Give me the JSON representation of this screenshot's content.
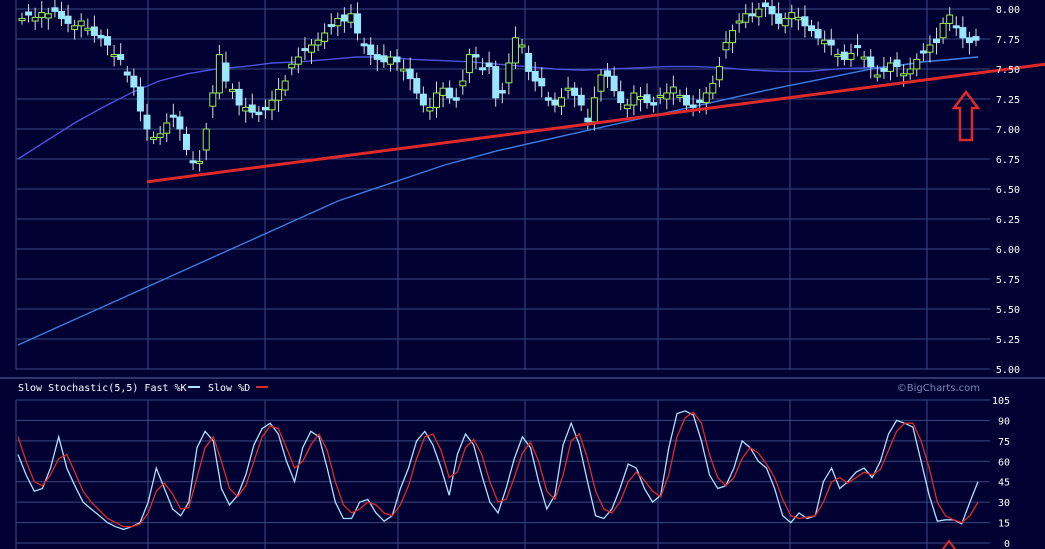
{
  "colors": {
    "background": "#000033",
    "grid": "#3a4a80",
    "candle_up": "#99ee55",
    "candle_down": "#99e6ff",
    "ma_short": "#4a52e0",
    "ma_long": "#3b7de0",
    "trendline": "#e02a2a",
    "arrow": "#e02a2a",
    "stoch_fast": "#a8e4ff",
    "stoch_slow": "#e02a2a"
  },
  "chart_data": [
    {
      "type": "candlestick",
      "title": "",
      "ylim": [
        5.0,
        8.0
      ],
      "y_ticks": [
        "8.00",
        "7.75",
        "7.50",
        "7.25",
        "7.00",
        "6.75",
        "6.50",
        "6.25",
        "6.00",
        "5.75",
        "5.50",
        "5.25",
        "5.00"
      ],
      "n_sessions": 122,
      "ohlc_close": [
        7.92,
        7.95,
        7.93,
        7.97,
        7.96,
        7.98,
        7.92,
        7.88,
        7.86,
        7.9,
        7.84,
        7.78,
        7.76,
        7.7,
        7.62,
        7.58,
        7.45,
        7.35,
        7.15,
        7.0,
        6.93,
        6.96,
        7.05,
        7.1,
        7.0,
        6.83,
        6.72,
        6.73,
        7.0,
        7.3,
        7.62,
        7.4,
        7.33,
        7.2,
        7.18,
        7.14,
        7.12,
        7.16,
        7.24,
        7.33,
        7.4,
        7.54,
        7.6,
        7.66,
        7.7,
        7.74,
        7.8,
        7.86,
        7.92,
        7.9,
        7.96,
        7.8,
        7.7,
        7.62,
        7.58,
        7.56,
        7.6,
        7.56,
        7.5,
        7.42,
        7.3,
        7.2,
        7.18,
        7.3,
        7.34,
        7.26,
        7.24,
        7.4,
        7.62,
        7.6,
        7.5,
        7.52,
        7.26,
        7.3,
        7.55,
        7.76,
        7.7,
        7.48,
        7.4,
        7.36,
        7.24,
        7.2,
        7.26,
        7.34,
        7.28,
        7.2,
        7.06,
        7.26,
        7.45,
        7.44,
        7.32,
        7.22,
        7.2,
        7.3,
        7.27,
        7.22,
        7.2,
        7.28,
        7.3,
        7.35,
        7.28,
        7.2,
        7.18,
        7.22,
        7.3,
        7.38,
        7.52,
        7.72,
        7.82,
        7.9,
        7.96,
        7.95,
        8.0,
        8.02,
        7.96,
        7.88,
        7.92,
        7.97,
        7.93,
        7.86,
        7.82,
        7.76
      ],
      "tail_closes": [
        7.74,
        7.7,
        7.62,
        7.58,
        7.63,
        7.68,
        7.6,
        7.52,
        7.45,
        7.48,
        7.55,
        7.52,
        7.46,
        7.5,
        7.58,
        7.64,
        7.7,
        7.72,
        7.88,
        7.95,
        7.85,
        7.76,
        7.72,
        7.74
      ],
      "moving_averages": [
        {
          "values": [
            6.75,
            6.9,
            7.05,
            7.18,
            7.3,
            7.4,
            7.46,
            7.5,
            7.52,
            7.55,
            7.56,
            7.58,
            7.6,
            7.6,
            7.58,
            7.57,
            7.56,
            7.54,
            7.52,
            7.5,
            7.49,
            7.5,
            7.51,
            7.52,
            7.52,
            7.51,
            7.49,
            7.48,
            7.48,
            7.5,
            7.51,
            7.52,
            7.56,
            7.58,
            7.6
          ]
        },
        {
          "values": [
            5.2,
            5.4,
            5.6,
            5.8,
            6.0,
            6.2,
            6.4,
            6.55,
            6.7,
            6.82,
            6.92,
            7.02,
            7.12,
            7.22,
            7.32,
            7.41,
            7.5,
            7.56,
            7.6
          ]
        }
      ],
      "trendline": {
        "from": [
          7,
          6.56
        ],
        "to": [
          121,
          7.54
        ]
      }
    },
    {
      "type": "line",
      "title": "Slow Stochastic(5,5) Fast %K",
      "slow_label": "Slow %D",
      "credit": "©BigCharts.com",
      "ylim": [
        0,
        105
      ],
      "y_ticks": [
        "105",
        "90",
        "75",
        "60",
        "45",
        "30",
        "15",
        "0"
      ],
      "series": [
        {
          "name": "Fast %K",
          "values": [
            65,
            50,
            38,
            40,
            55,
            78,
            55,
            42,
            30,
            25,
            20,
            15,
            12,
            10,
            12,
            15,
            30,
            55,
            40,
            25,
            20,
            30,
            70,
            82,
            75,
            40,
            28,
            35,
            50,
            72,
            84,
            88,
            80,
            60,
            45,
            70,
            82,
            78,
            55,
            30,
            18,
            18,
            30,
            32,
            22,
            16,
            20,
            40,
            55,
            75,
            82,
            72,
            55,
            35,
            65,
            80,
            72,
            50,
            30,
            22,
            40,
            62,
            78,
            70,
            45,
            25,
            35,
            72,
            88,
            72,
            45,
            20,
            18,
            25,
            40,
            58,
            55,
            40,
            30,
            35,
            70,
            95,
            97,
            94,
            75,
            50,
            40,
            42,
            55,
            75,
            70,
            60,
            55,
            40,
            20,
            15,
            22,
            18,
            20,
            45,
            55,
            40,
            45,
            52,
            55,
            48,
            60,
            80,
            90,
            88,
            85,
            60,
            35,
            16,
            17,
            17,
            14,
            30,
            45
          ]
        },
        {
          "name": "Slow %D",
          "values": [
            78,
            60,
            45,
            42,
            50,
            62,
            65,
            52,
            38,
            30,
            24,
            18,
            15,
            12,
            12,
            14,
            22,
            38,
            44,
            36,
            25,
            26,
            48,
            70,
            78,
            60,
            40,
            34,
            42,
            60,
            78,
            86,
            84,
            70,
            55,
            60,
            72,
            80,
            68,
            45,
            28,
            22,
            25,
            30,
            28,
            22,
            20,
            28,
            42,
            62,
            78,
            80,
            68,
            48,
            52,
            70,
            76,
            65,
            45,
            30,
            32,
            48,
            66,
            74,
            60,
            38,
            32,
            50,
            75,
            80,
            62,
            38,
            25,
            22,
            30,
            45,
            52,
            46,
            38,
            34,
            50,
            78,
            92,
            96,
            88,
            65,
            48,
            42,
            48,
            62,
            70,
            66,
            58,
            48,
            32,
            20,
            18,
            19,
            20,
            30,
            45,
            48,
            44,
            48,
            52,
            50,
            54,
            68,
            82,
            88,
            88,
            75,
            55,
            30,
            20,
            17,
            15,
            20,
            30
          ]
        }
      ],
      "annotation": "up-arrow"
    }
  ]
}
